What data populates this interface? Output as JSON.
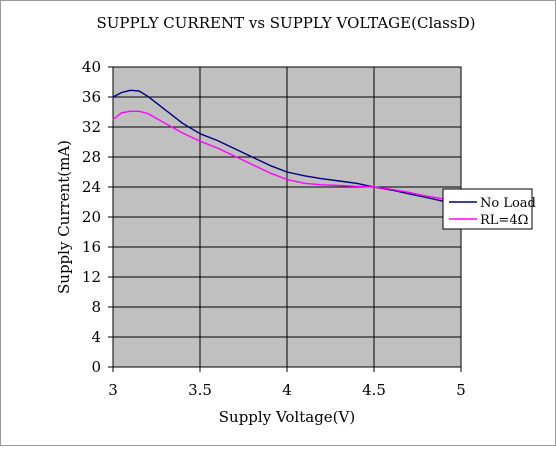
{
  "chart_data": {
    "type": "line",
    "title": "SUPPLY CURRENT vs SUPPLY VOLTAGE(ClassD)",
    "xlabel": "Supply Voltage(V)",
    "ylabel": "Supply Current(mA)",
    "xlim": [
      3,
      5
    ],
    "ylim": [
      0,
      40
    ],
    "x_ticks": [
      "3",
      "3.5",
      "4",
      "4.5",
      "5"
    ],
    "y_ticks": [
      "0",
      "4",
      "8",
      "12",
      "16",
      "20",
      "24",
      "28",
      "32",
      "36",
      "40"
    ],
    "grid": true,
    "legend_position": "right",
    "plot_background": "#c0c0c0",
    "series": [
      {
        "name": "No Load",
        "color": "#000080",
        "x": [
          3.0,
          3.05,
          3.1,
          3.15,
          3.2,
          3.3,
          3.4,
          3.5,
          3.6,
          3.7,
          3.8,
          3.9,
          4.0,
          4.1,
          4.2,
          4.3,
          4.4,
          4.5,
          4.6,
          4.7,
          4.8,
          4.9
        ],
        "y": [
          36.0,
          36.6,
          36.9,
          36.8,
          36.1,
          34.3,
          32.5,
          31.1,
          30.2,
          29.1,
          28.0,
          26.9,
          26.0,
          25.5,
          25.1,
          24.8,
          24.5,
          24.0,
          23.6,
          23.1,
          22.6,
          22.1
        ]
      },
      {
        "name": "RL=4Ω",
        "color": "#ff00ff",
        "x": [
          3.0,
          3.05,
          3.1,
          3.15,
          3.2,
          3.3,
          3.4,
          3.5,
          3.6,
          3.7,
          3.8,
          3.9,
          4.0,
          4.1,
          4.2,
          4.3,
          4.4,
          4.5,
          4.6,
          4.7,
          4.8,
          4.9
        ],
        "y": [
          33.0,
          33.9,
          34.1,
          34.1,
          33.8,
          32.5,
          31.2,
          30.1,
          29.2,
          28.1,
          27.0,
          25.9,
          25.0,
          24.5,
          24.3,
          24.2,
          24.1,
          24.0,
          23.7,
          23.3,
          22.8,
          22.4
        ]
      }
    ]
  }
}
